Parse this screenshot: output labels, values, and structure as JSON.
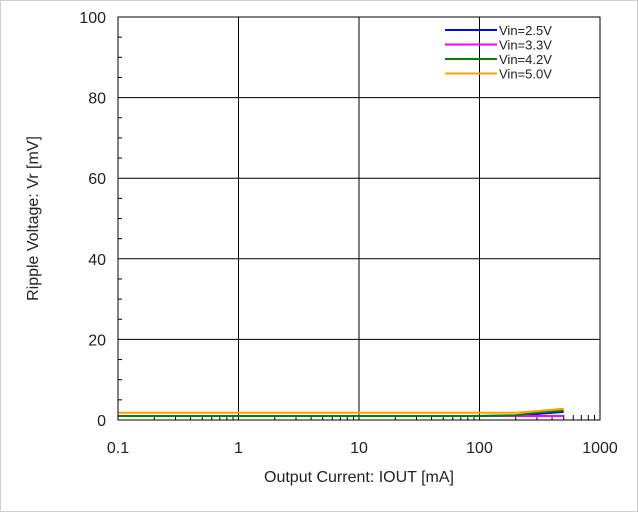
{
  "chart_data": {
    "type": "line",
    "xlabel": "Output Current: IOUT [mA]",
    "ylabel": "Ripple Voltage: Vr [mV]",
    "x_scale": "log",
    "xlim": [
      0.1,
      1000
    ],
    "ylim": [
      0,
      100
    ],
    "x_ticks": [
      "0.1",
      "1",
      "10",
      "100",
      "1000"
    ],
    "y_ticks": [
      "0",
      "20",
      "40",
      "60",
      "80",
      "100"
    ],
    "grid": true,
    "legend_position": "top-right",
    "series": [
      {
        "name": "Vin=2.5V",
        "color": "#0000ff",
        "x": [
          0.1,
          1,
          10,
          100,
          200,
          300,
          500
        ],
        "y": [
          1.0,
          1.0,
          1.0,
          1.0,
          1.1,
          1.5,
          2.0
        ]
      },
      {
        "name": "Vin=3.3V",
        "color": "#ff00ff",
        "x": [
          0.1,
          1,
          10,
          100,
          200,
          300,
          500
        ],
        "y": [
          1.0,
          1.0,
          1.0,
          1.0,
          1.0,
          1.0,
          1.0
        ]
      },
      {
        "name": "Vin=4.2V",
        "color": "#008000",
        "x": [
          0.1,
          1,
          10,
          100,
          200,
          300,
          500
        ],
        "y": [
          1.0,
          1.0,
          1.0,
          1.0,
          1.2,
          1.8,
          2.3
        ]
      },
      {
        "name": "Vin=5.0V",
        "color": "#ffa000",
        "x": [
          0.1,
          1,
          10,
          100,
          200,
          300,
          500
        ],
        "y": [
          1.8,
          1.8,
          1.8,
          1.8,
          1.8,
          2.2,
          2.8
        ]
      }
    ]
  }
}
